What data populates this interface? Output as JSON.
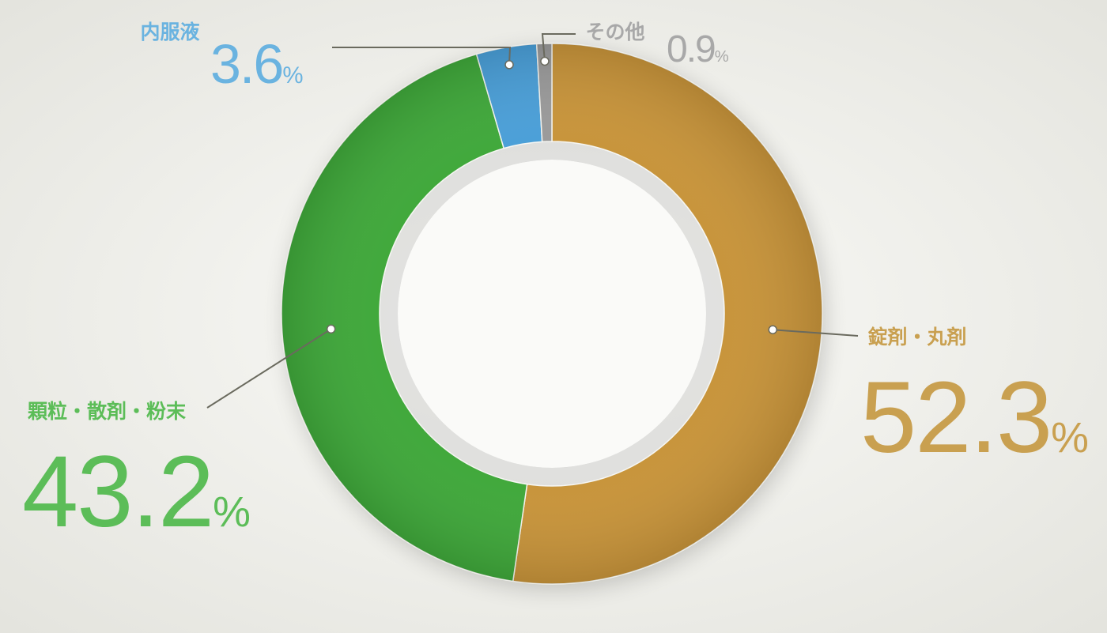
{
  "chart_data": {
    "type": "pie",
    "categories": [
      "錠剤・丸剤",
      "顆粒・散剤・粉末",
      "内服液",
      "その他"
    ],
    "values": [
      52.3,
      43.2,
      3.6,
      0.9
    ],
    "value_labels": [
      "52.3%",
      "43.2%",
      "3.6%",
      "0.9%"
    ],
    "colors": [
      "#c8943a",
      "#3fa83a",
      "#4a9fd8",
      "#9a9a9a"
    ],
    "label_colors": [
      "#c9a050",
      "#5cbd58",
      "#6ab3e0",
      "#a8a8a8"
    ]
  }
}
